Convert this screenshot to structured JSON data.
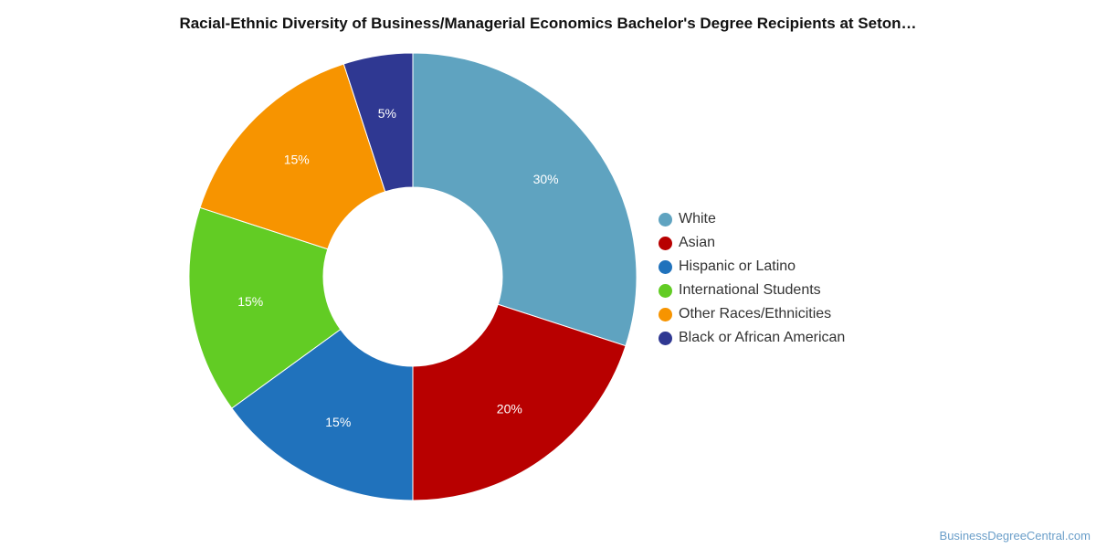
{
  "chart_data": {
    "type": "pie",
    "title": "Racial-Ethnic Diversity of Business/Managerial Economics Bachelor's Degree Recipients at Seton…",
    "donut": true,
    "legend_position": "right",
    "slices": [
      {
        "name": "White",
        "value": 30,
        "label": "30%",
        "color": "#5fa3c0"
      },
      {
        "name": "Asian",
        "value": 20,
        "label": "20%",
        "color": "#b80000"
      },
      {
        "name": "Hispanic or Latino",
        "value": 15,
        "label": "15%",
        "color": "#2072bc"
      },
      {
        "name": "International Students",
        "value": 15,
        "label": "15%",
        "color": "#62cc24"
      },
      {
        "name": "Other Races/Ethnicities",
        "value": 15,
        "label": "15%",
        "color": "#f79400"
      },
      {
        "name": "Black or African American",
        "value": 5,
        "label": "5%",
        "color": "#2f3892"
      }
    ]
  },
  "watermark": "BusinessDegreeCentral.com"
}
